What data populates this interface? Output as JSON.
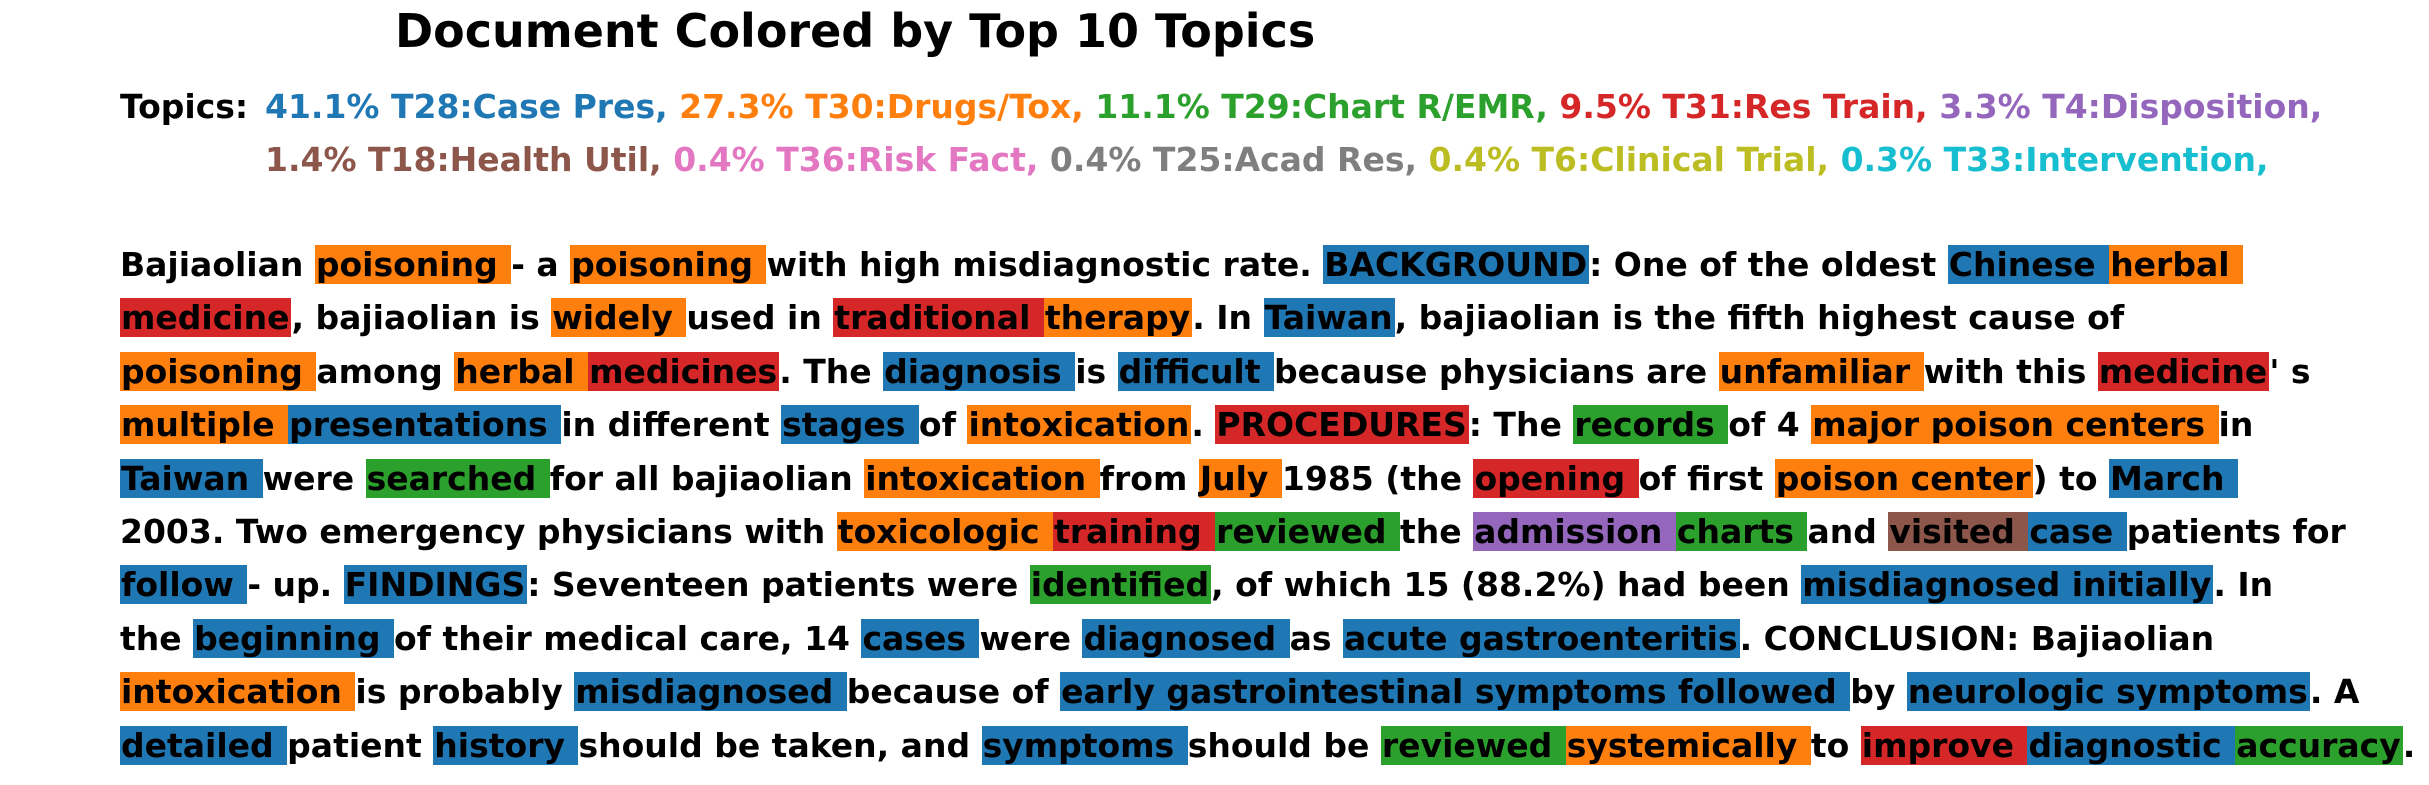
{
  "title": "Document Colored by Top 10 Topics",
  "topics_label": "Topics:",
  "topics": [
    {
      "text": "41.1% T28:Case Pres,",
      "color": "#1f77b4"
    },
    {
      "text": "27.3% T30:Drugs/Tox,",
      "color": "#ff7f0e"
    },
    {
      "text": "11.1% T29:Chart R/EMR,",
      "color": "#2ca02c"
    },
    {
      "text": "9.5% T31:Res Train,",
      "color": "#d62728"
    },
    {
      "text": "3.3% T4:Disposition,",
      "color": "#9467bd"
    },
    {
      "text": "1.4% T18:Health Util,",
      "color": "#8c564b"
    },
    {
      "text": "0.4% T36:Risk Fact,",
      "color": "#e377c2"
    },
    {
      "text": "0.4% T25:Acad Res,",
      "color": "#7f7f7f"
    },
    {
      "text": "0.4% T6:Clinical Trial,",
      "color": "#bcbd22"
    },
    {
      "text": "0.3% T33:Intervention,",
      "color": "#17becf"
    }
  ],
  "document_lines": [
    [
      [
        "Bajiaolian ",
        null
      ],
      [
        "poisoning ",
        1
      ],
      [
        "- a ",
        null
      ],
      [
        "poisoning ",
        1
      ],
      [
        "with high misdiagnostic rate. ",
        null
      ],
      [
        "BACKGROUND",
        0
      ],
      [
        ": One of the oldest ",
        null
      ],
      [
        "Chinese ",
        0
      ],
      [
        "herbal ",
        1
      ]
    ],
    [
      [
        "medicine",
        3
      ],
      [
        ", bajiaolian is ",
        null
      ],
      [
        "widely ",
        1
      ],
      [
        "used in ",
        null
      ],
      [
        "traditional ",
        3
      ],
      [
        "therapy",
        1
      ],
      [
        ". In ",
        null
      ],
      [
        "Taiwan",
        0
      ],
      [
        ", bajiaolian is the fifth highest cause of",
        null
      ]
    ],
    [
      [
        "poisoning ",
        1
      ],
      [
        "among ",
        null
      ],
      [
        "herbal ",
        1
      ],
      [
        "medicines",
        3
      ],
      [
        ". The ",
        null
      ],
      [
        "diagnosis ",
        0
      ],
      [
        "is ",
        null
      ],
      [
        "difficult ",
        0
      ],
      [
        "because physicians are ",
        null
      ],
      [
        "unfamiliar ",
        1
      ],
      [
        "with this ",
        null
      ],
      [
        "medicine",
        3
      ],
      [
        "' s",
        null
      ]
    ],
    [
      [
        "multiple ",
        1
      ],
      [
        "presentations ",
        0
      ],
      [
        "in different ",
        null
      ],
      [
        "stages ",
        0
      ],
      [
        "of ",
        null
      ],
      [
        "intoxication",
        1
      ],
      [
        ". ",
        null
      ],
      [
        "PROCEDURES",
        3
      ],
      [
        ": The ",
        null
      ],
      [
        "records ",
        2
      ],
      [
        "of 4 ",
        null
      ],
      [
        "major poison centers ",
        1
      ],
      [
        "in",
        null
      ]
    ],
    [
      [
        "Taiwan ",
        0
      ],
      [
        "were ",
        null
      ],
      [
        "searched ",
        2
      ],
      [
        "for all bajiaolian ",
        null
      ],
      [
        "intoxication ",
        1
      ],
      [
        "from ",
        null
      ],
      [
        "July ",
        1
      ],
      [
        "1985 (the ",
        null
      ],
      [
        "opening ",
        3
      ],
      [
        "of first ",
        null
      ],
      [
        "poison center",
        1
      ],
      [
        ") to ",
        null
      ],
      [
        "March ",
        0
      ]
    ],
    [
      [
        "2003. Two emergency physicians with ",
        null
      ],
      [
        "toxicologic ",
        1
      ],
      [
        "training ",
        3
      ],
      [
        "reviewed ",
        2
      ],
      [
        "the ",
        null
      ],
      [
        "admission ",
        4
      ],
      [
        "charts ",
        2
      ],
      [
        "and ",
        null
      ],
      [
        "visited ",
        5
      ],
      [
        "case ",
        0
      ],
      [
        "patients for",
        null
      ]
    ],
    [
      [
        "follow ",
        0
      ],
      [
        "- up. ",
        null
      ],
      [
        "FINDINGS",
        0
      ],
      [
        ": Seventeen patients were ",
        null
      ],
      [
        "identified",
        2
      ],
      [
        ", of which 15 (88.2%) had been ",
        null
      ],
      [
        "misdiagnosed initially",
        0
      ],
      [
        ". In",
        null
      ]
    ],
    [
      [
        "the ",
        null
      ],
      [
        "beginning ",
        0
      ],
      [
        "of their medical care, 14 ",
        null
      ],
      [
        "cases ",
        0
      ],
      [
        "were ",
        null
      ],
      [
        "diagnosed ",
        0
      ],
      [
        "as ",
        null
      ],
      [
        "acute gastroenteritis",
        0
      ],
      [
        ". CONCLUSION: Bajiaolian",
        null
      ]
    ],
    [
      [
        "intoxication ",
        1
      ],
      [
        "is probably ",
        null
      ],
      [
        "misdiagnosed ",
        0
      ],
      [
        "because of ",
        null
      ],
      [
        "early gastrointestinal symptoms followed ",
        0
      ],
      [
        "by ",
        null
      ],
      [
        "neurologic symptoms",
        0
      ],
      [
        ". A",
        null
      ]
    ],
    [
      [
        "detailed ",
        0
      ],
      [
        "patient ",
        null
      ],
      [
        "history ",
        0
      ],
      [
        "should be taken, and ",
        null
      ],
      [
        "symptoms ",
        0
      ],
      [
        "should be ",
        null
      ],
      [
        "reviewed ",
        2
      ],
      [
        "systemically ",
        1
      ],
      [
        "to ",
        null
      ],
      [
        "improve ",
        3
      ],
      [
        "diagnostic ",
        0
      ],
      [
        "accuracy",
        2
      ],
      [
        ".",
        null
      ]
    ]
  ]
}
